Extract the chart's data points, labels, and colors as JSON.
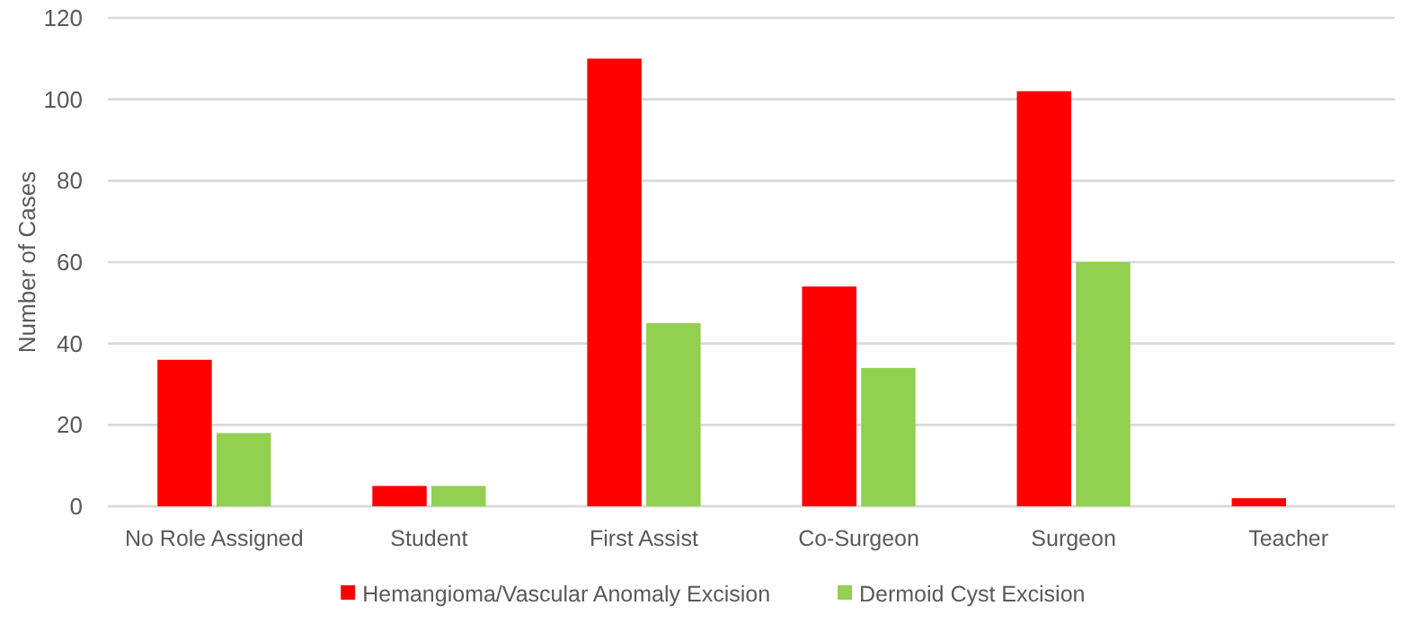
{
  "chart_data": {
    "type": "bar",
    "ylabel": "Number of Cases",
    "categories": [
      "No Role Assigned",
      "Student",
      "First Assist",
      "Co-Surgeon",
      "Surgeon",
      "Teacher"
    ],
    "series": [
      {
        "name": "Hemangioma/Vascular Anomaly Excision",
        "color": "#ff0000",
        "values": [
          36,
          5,
          110,
          54,
          102,
          2
        ]
      },
      {
        "name": "Dermoid Cyst Excision",
        "color": "#92d050",
        "values": [
          18,
          5,
          45,
          34,
          60,
          0
        ]
      }
    ],
    "ylim": [
      0,
      120
    ],
    "yticks": [
      0,
      20,
      40,
      60,
      80,
      100,
      120
    ],
    "grid": "y",
    "legend": "bottom"
  }
}
